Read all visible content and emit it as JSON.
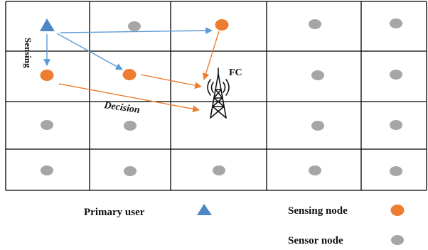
{
  "diagram": {
    "labels": {
      "fc": "FC",
      "sensing": "Sensing",
      "decision": "Decision"
    },
    "colors": {
      "grid_line": "#000000",
      "primary_user": "#4f86c6",
      "sensing_node": "#ed7d31",
      "sensor_node": "#a6a6a6",
      "blue_arrow": "#5b9bd5",
      "orange_arrow": "#ed7d31"
    },
    "icons": {
      "primary_user": "triangle-icon",
      "sensing_node": "orange-circle-icon",
      "sensor_node": "gray-circle-icon",
      "fusion_center": "transmission-tower-icon"
    }
  },
  "legend": {
    "primary_user": "Primary user",
    "sensing_node": "Sensing node",
    "sensor_node": "Sensor node"
  }
}
